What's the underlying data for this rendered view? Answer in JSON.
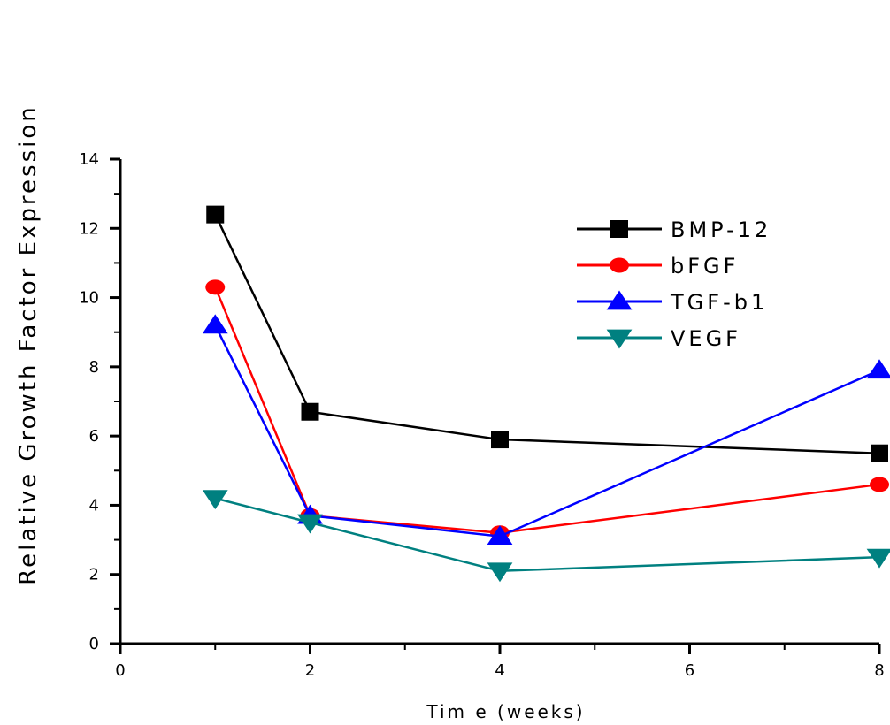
{
  "chart_data": {
    "type": "line",
    "xlabel": "Tim e (weeks)",
    "ylabel": "Relative Growth Factor Expression",
    "xlim": [
      0,
      8
    ],
    "ylim": [
      0,
      14
    ],
    "x_ticks": [
      "0",
      "2",
      "4",
      "6",
      "8"
    ],
    "y_ticks": [
      "0",
      "2",
      "4",
      "6",
      "8",
      "10",
      "12",
      "14"
    ],
    "legend_position": "top-right",
    "grid": false,
    "series": [
      {
        "name": "BMP-12",
        "color": "#000000",
        "marker": "square",
        "x": [
          1,
          2,
          4,
          8
        ],
        "y": [
          12.4,
          6.7,
          5.9,
          5.5
        ]
      },
      {
        "name": "bFGF",
        "color": "#ff0000",
        "marker": "circle",
        "x": [
          1,
          2,
          4,
          8
        ],
        "y": [
          10.3,
          3.7,
          3.2,
          4.6
        ]
      },
      {
        "name": "TGF-b1",
        "color": "#0000ff",
        "marker": "triangle-up",
        "x": [
          1,
          2,
          4,
          8
        ],
        "y": [
          9.2,
          3.7,
          3.1,
          7.9
        ]
      },
      {
        "name": "VEGF",
        "color": "#008080",
        "marker": "triangle-down",
        "x": [
          1,
          2,
          4,
          8
        ],
        "y": [
          4.2,
          3.5,
          2.1,
          2.5
        ]
      }
    ]
  }
}
